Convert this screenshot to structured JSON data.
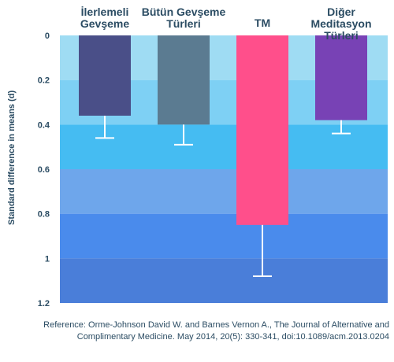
{
  "chart_data": {
    "type": "bar",
    "categories": [
      "İlerlemeli\nGevşeme",
      "Bütün Gevşeme\nTürleri",
      "TM",
      "Diğer Meditasyon\nTürleri"
    ],
    "values": [
      0.36,
      0.4,
      0.85,
      0.38
    ],
    "error_upper": [
      0.46,
      0.49,
      1.08,
      0.44
    ],
    "bar_colors": [
      "#4a4f88",
      "#5b7b91",
      "#ff4f8b",
      "#7842b5"
    ],
    "band_colors": [
      "#9fdcf3",
      "#7ed0f4",
      "#45bcf2",
      "#6ea6eb",
      "#4a8bec",
      "#4a7ed9"
    ],
    "ylabel": "Standard difference in means (d)",
    "yticks": [
      "0",
      "0.2",
      "0.4",
      "0.6",
      "0.8",
      "1",
      "1.2"
    ],
    "ylim": [
      0,
      1.2
    ],
    "y_inverted": true,
    "grid": false
  },
  "reference": "Reference: Orme-Johnson David W. and Barnes Vernon A., The Journal of Alternative and Complimentary Medicine. May 2014, 20(5): 330-341, doi:10.1089/acm.2013.0204"
}
